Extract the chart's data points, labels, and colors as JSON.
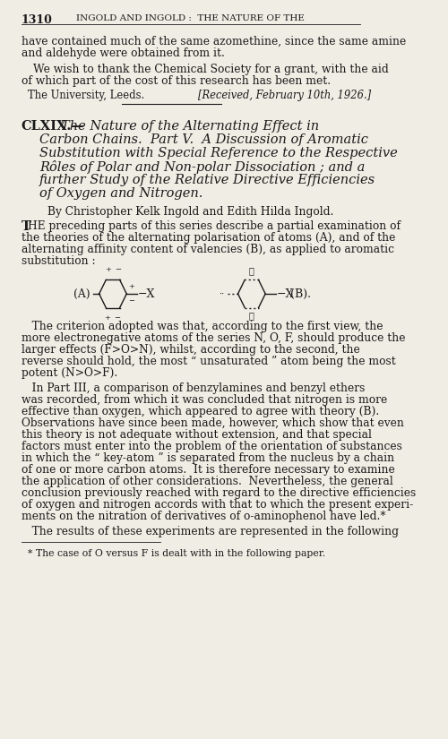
{
  "page_num": "1310",
  "header": "INGOLD AND INGOLD :  THE NATURE OF THE",
  "bg_color": "#f0ede4",
  "text_color": "#1a1a1a",
  "intro_lines": [
    "have contained much of the same azomethine, since the same amine",
    "and aldehyde were obtained from it."
  ],
  "thank_lines": [
    "We wish to thank the Chemical Society for a grant, with the aid",
    "of which part of the cost of this research has been met."
  ],
  "address_left": "The University, Leeds.",
  "address_right": "[Received, February 10th, 1926.]",
  "title_prefix": "CLXIX.—",
  "title_lines": [
    "The Nature of the Alternating Effect in",
    "Carbon Chains.  Part V.  A Discussion of Aromatic",
    "Substitution with Special Reference to the Respective",
    "Rôles of Polar and Non-polar Dissociation ; and a",
    "further Study of the Relative Directive Efficiencies",
    "of Oxygen and Nitrogen."
  ],
  "author_line": "By Christopher Kelk Ingold and Edith Hilda Ingold.",
  "para1_lines": [
    "HE preceding parts of this series describe a partial examination of",
    "the theories of the alternating polarisation of atoms (A), and of the",
    "alternating affinity content of valencies (B), as applied to aromatic",
    "substitution :"
  ],
  "para2_lines": [
    "   The criterion adopted was that, according to the first view, the",
    "more electronegative atoms of the series N, O, F, should produce the",
    "larger effects (F>O>N), whilst, according to the second, the",
    "reverse should hold, the most “ unsaturated ” atom being the most",
    "potent (N>O>F)."
  ],
  "para3_lines": [
    "   In Part III, a comparison of benzylamines and benzyl ethers",
    "was recorded, from which it was concluded that nitrogen is more",
    "effective than oxygen, which appeared to agree with theory (B).",
    "Observations have since been made, however, which show that even",
    "this theory is not adequate without extension, and that special",
    "factors must enter into the problem of the orientation of substances",
    "in which the “ key-atom ” is separated from the nucleus by a chain",
    "of one or more carbon atoms.  It is therefore necessary to examine",
    "the application of other considerations.  Nevertheless, the general",
    "conclusion previously reached with regard to the directive efficiencies",
    "of oxygen and nitrogen accords with that to which the present experi-",
    "ments on the nitration of derivatives of o-aminophenol have led.*"
  ],
  "para4_line": "   The results of these experiments are represented in the following",
  "footnote": "* The case of O versus F is dealt with in the following paper."
}
